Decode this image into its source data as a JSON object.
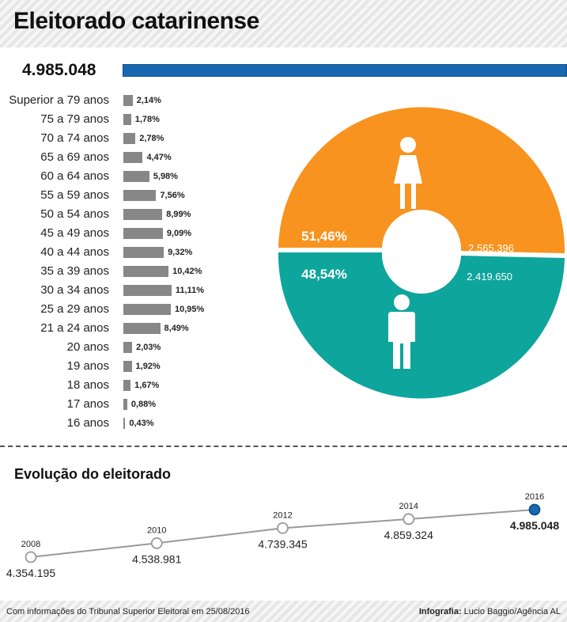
{
  "header": {
    "title": "Eleitorado catarinense"
  },
  "total": {
    "label": "4.985.048"
  },
  "colors": {
    "female": "#f7931e",
    "male": "#0ea59c",
    "total_bar": "#1668b0",
    "age_bar": "#878787",
    "line": "#999999",
    "highlight_point": "#1668b0"
  },
  "chart_data": [
    {
      "type": "bar",
      "title": "",
      "categories": [
        "Superior a 79 anos",
        "75 a 79 anos",
        "70 a 74 anos",
        "65 a 69 anos",
        "60 a 64 anos",
        "55 a 59 anos",
        "50 a 54 anos",
        "45 a 49 anos",
        "40 a 44 anos",
        "35 a 39 anos",
        "30 a 34 anos",
        "25 a 29 anos",
        "21 a 24 anos",
        "20 anos",
        "19 anos",
        "18 anos",
        "17 anos",
        "16 anos"
      ],
      "values": [
        2.14,
        1.78,
        2.78,
        4.47,
        5.98,
        7.56,
        8.99,
        9.09,
        9.32,
        10.42,
        11.11,
        10.95,
        8.49,
        2.03,
        1.92,
        1.67,
        0.88,
        0.43
      ],
      "value_labels": [
        "2,14%",
        "1,78%",
        "2,78%",
        "4,47%",
        "5,98%",
        "7,56%",
        "8,99%",
        "9,09%",
        "9,32%",
        "10,42%",
        "11,11%",
        "10,95%",
        "8,49%",
        "2,03%",
        "1,92%",
        "1,67%",
        "0,88%",
        "0,43%"
      ],
      "orientation": "horizontal"
    },
    {
      "type": "pie",
      "title": "",
      "slices": [
        {
          "icon": "female-icon",
          "value": 2565396,
          "percent_label": "51,46%",
          "count_label": "2.565.396"
        },
        {
          "icon": "male-icon",
          "value": 2419650,
          "percent_label": "48,54%",
          "count_label": "2.419.650"
        }
      ]
    },
    {
      "type": "line",
      "title": "Evolução do eleitorado",
      "x": [
        2008,
        2010,
        2012,
        2014,
        2016
      ],
      "x_labels": [
        "2008",
        "2010",
        "2012",
        "2014",
        "2016"
      ],
      "y": [
        4354195,
        4538981,
        4739345,
        4859324,
        4985048
      ],
      "y_labels": [
        "4.354.195",
        "4.538.981",
        "4.739.345",
        "4.859.324",
        "4.985.048"
      ]
    }
  ],
  "footer": {
    "source": "Com informações do Tribunal Superior Eleitoral em 25/08/2016",
    "credit_label": "Infografia:",
    "credit_name": "Lucio Baggio/Agência AL"
  }
}
